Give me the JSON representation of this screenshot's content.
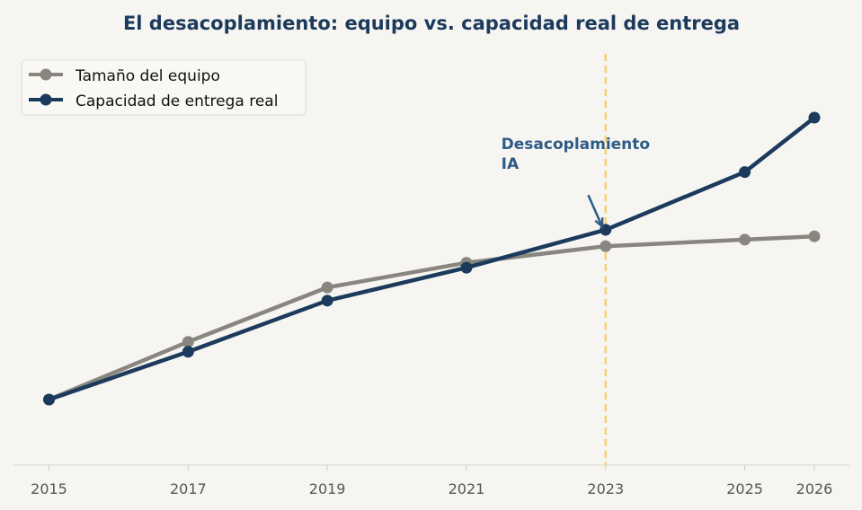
{
  "colors": {
    "background": "#f6f5f1",
    "team": "#88867f",
    "delivery": "#1b3a5c",
    "title": "#1b3a5c",
    "annotation": "#2e5b86",
    "marker_line": "#f2d27a",
    "axis": "#e3e1dc",
    "tick_text": "#555555"
  },
  "chart_data": {
    "type": "line",
    "title": "El desacoplamiento: equipo vs. capacidad real de entrega",
    "xlabel": "",
    "ylabel": "",
    "x": [
      2015,
      2017,
      2019,
      2021,
      2023,
      2025,
      2026
    ],
    "xticks": [
      "2015",
      "2017",
      "2019",
      "2021",
      "2023",
      "2025",
      "2026"
    ],
    "xlim": [
      2014.5,
      2026.5
    ],
    "ylim": [
      0,
      100
    ],
    "yticks_visible": false,
    "series": [
      {
        "name": "Tamaño del equipo",
        "key": "team",
        "values": [
          16,
          33.5,
          50,
          57.5,
          62.5,
          64.5,
          65.5
        ]
      },
      {
        "name": "Capacidad de entrega real",
        "key": "delivery",
        "values": [
          16,
          30.5,
          46,
          56,
          67.5,
          85,
          101.5
        ]
      }
    ],
    "vline": {
      "x": 2023,
      "style": "dashed"
    },
    "annotation": {
      "lines": [
        "Desacoplamiento",
        "IA"
      ],
      "text_x": 2021.5,
      "text_y": 92,
      "arrow_from": [
        2022.75,
        78
      ],
      "arrow_to": [
        2022.95,
        68.5
      ]
    },
    "legend": {
      "position": "top-left"
    }
  }
}
